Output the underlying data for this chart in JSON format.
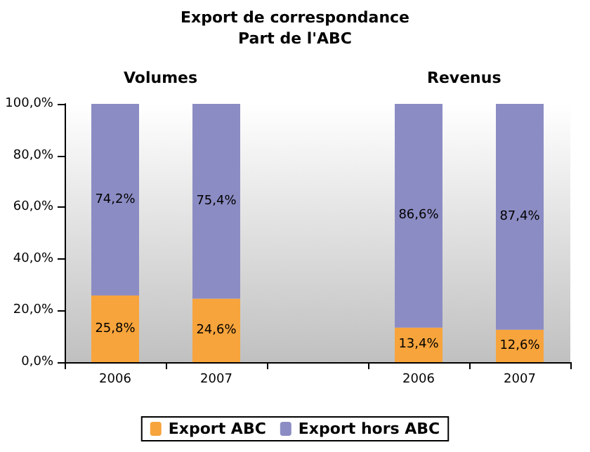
{
  "chart_data": {
    "type": "bar",
    "title": "Export de correspondance",
    "subtitle": "Part de l'ABC",
    "stacked": true,
    "categories": [
      "2006",
      "2007",
      null,
      "2006",
      "2007"
    ],
    "series": [
      {
        "name": "Export ABC",
        "color": "#f7a43c",
        "values": [
          25.8,
          24.6,
          null,
          13.4,
          12.6
        ],
        "value_labels": [
          "25,8%",
          "24,6%",
          null,
          "13,4%",
          "12,6%"
        ]
      },
      {
        "name": "Export hors ABC",
        "color": "#8c8cc4",
        "values": [
          74.2,
          75.4,
          null,
          86.6,
          87.4
        ],
        "value_labels": [
          "74,2%",
          "75,4%",
          null,
          "86,6%",
          "87,4%"
        ]
      }
    ],
    "annotations": [
      "Volumes",
      "Revenus"
    ],
    "ylim": [
      0,
      100
    ],
    "yticks": [
      {
        "value": 0,
        "label": "0,0%"
      },
      {
        "value": 20,
        "label": "20,0%"
      },
      {
        "value": 40,
        "label": "40,0%"
      },
      {
        "value": 60,
        "label": "60,0%"
      },
      {
        "value": 80,
        "label": "80,0%"
      },
      {
        "value": 100,
        "label": "100,0%"
      }
    ],
    "grid": false,
    "legend": "bottom"
  }
}
